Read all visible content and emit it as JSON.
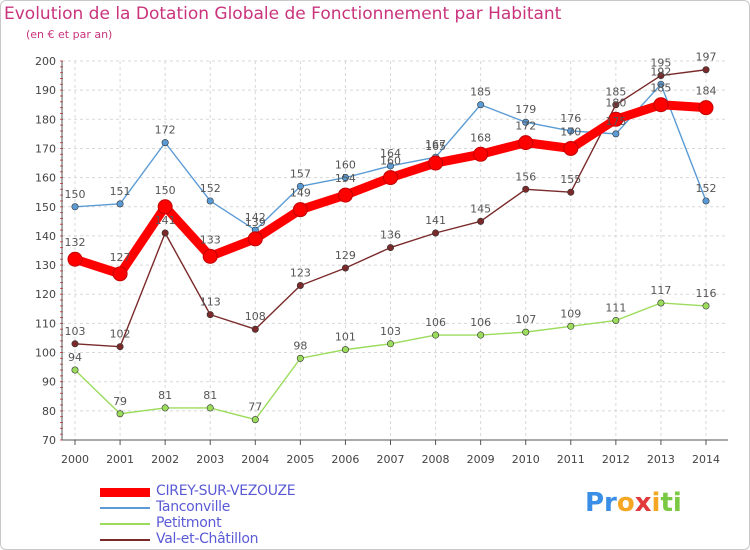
{
  "header": {
    "title": "Evolution de la Dotation Globale de Fonctionnement par Habitant",
    "subtitle": "(en € et par an)"
  },
  "chart_data": {
    "type": "line",
    "title": "Evolution de la Dotation Globale de Fonctionnement par Habitant",
    "ylabel": "(en € et par an)",
    "xlabel": "",
    "categories": [
      "2000",
      "2001",
      "2002",
      "2003",
      "2004",
      "2005",
      "2006",
      "2007",
      "2008",
      "2009",
      "2010",
      "2011",
      "2012",
      "2013",
      "2014"
    ],
    "ylim": [
      70,
      200
    ],
    "yticks": [
      70,
      80,
      90,
      100,
      110,
      120,
      130,
      140,
      150,
      160,
      170,
      180,
      190,
      200
    ],
    "series": [
      {
        "name": "CIREY-SUR-VEZOUZE",
        "color": "#ff0000",
        "values": [
          132,
          127,
          150,
          133,
          139,
          149,
          154,
          160,
          165,
          168,
          172,
          170,
          180,
          185,
          184
        ]
      },
      {
        "name": "Tanconville",
        "color": "#5b9bd5",
        "values": [
          150,
          151,
          172,
          152,
          142,
          157,
          160,
          164,
          167,
          185,
          179,
          176,
          175,
          192,
          152
        ]
      },
      {
        "name": "Petitmont",
        "color": "#9bdc5c",
        "values": [
          94,
          79,
          81,
          81,
          77,
          98,
          101,
          103,
          106,
          106,
          107,
          109,
          111,
          117,
          116
        ]
      },
      {
        "name": "Val-et-Châtillon",
        "color": "#7a2a2a",
        "values": [
          103,
          102,
          141,
          113,
          108,
          123,
          129,
          136,
          141,
          145,
          156,
          155,
          185,
          195,
          197
        ]
      }
    ],
    "legend": "bottom-left"
  },
  "logo": {
    "parts": [
      "Pr",
      "o",
      "x",
      "i",
      "ti"
    ],
    "colors": [
      "#3a8ee6",
      "#f5a623",
      "#e03a3a",
      "#f5a623",
      "#7ac943"
    ]
  }
}
